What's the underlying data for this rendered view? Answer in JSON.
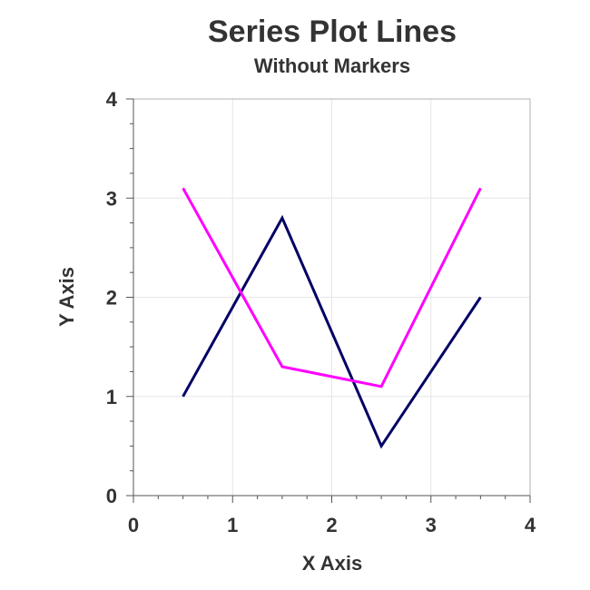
{
  "chart_data": {
    "type": "line",
    "title": "Series Plot Lines",
    "subtitle": "Without Markers",
    "xlabel": "X Axis",
    "ylabel": "Y Axis",
    "xlim": [
      0,
      4
    ],
    "ylim": [
      0,
      4
    ],
    "xticks": [
      "0",
      "1",
      "2",
      "3",
      "4"
    ],
    "yticks": [
      "0",
      "1",
      "2",
      "3",
      "4"
    ],
    "grid": true,
    "series": [
      {
        "color": "#000066",
        "points": [
          [
            0.5,
            1.0
          ],
          [
            1.5,
            2.8
          ],
          [
            2.5,
            0.5
          ],
          [
            3.5,
            2.0
          ]
        ]
      },
      {
        "color": "#ff00ff",
        "points": [
          [
            0.5,
            3.1
          ],
          [
            1.5,
            1.3
          ],
          [
            2.5,
            1.1
          ],
          [
            3.5,
            3.1
          ]
        ]
      }
    ]
  }
}
